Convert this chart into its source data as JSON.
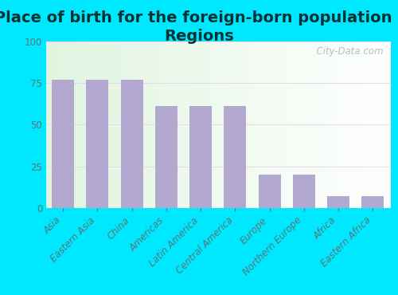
{
  "title": "Place of birth for the foreign-born population -\nRegions",
  "categories": [
    "Asia",
    "Eastern Asia",
    "China",
    "Americas",
    "Latin America",
    "Central America",
    "Europe",
    "Northern Europe",
    "Africa",
    "Eastern Africa"
  ],
  "values": [
    77,
    77,
    77,
    61,
    61,
    61,
    20,
    20,
    7,
    7
  ],
  "bar_color": "#b3a8d0",
  "background_outer": "#00e8ff",
  "background_inner": "#e8f5e8",
  "ylim": [
    0,
    100
  ],
  "yticks": [
    0,
    25,
    50,
    75,
    100
  ],
  "title_fontsize": 14,
  "tick_label_fontsize": 8.5,
  "watermark": "  City-Data.com",
  "title_color": "#003333",
  "tick_color": "#557777"
}
